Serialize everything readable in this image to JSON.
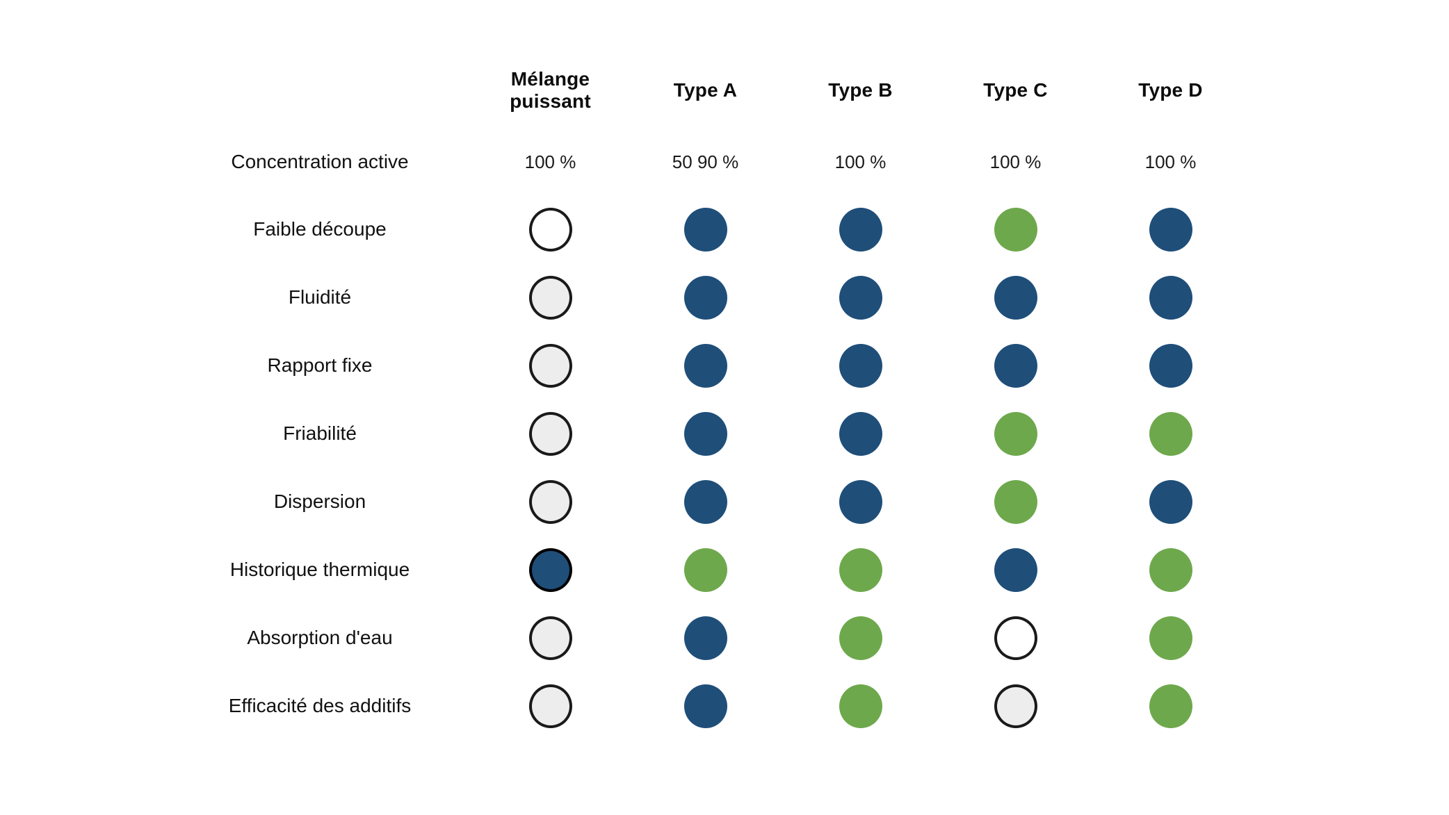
{
  "chart_data": {
    "type": "table",
    "description": "Comparison matrix of mixture types with colored rating dots",
    "columns": [
      "Mélange puissant",
      "Type A",
      "Type B",
      "Type C",
      "Type D"
    ],
    "concentration": {
      "label": "Concentration active",
      "values": [
        "100 %",
        "50 90 %",
        "100 %",
        "100 %",
        "100 %"
      ]
    },
    "rows": [
      {
        "label": "Faible découpe",
        "dots": [
          "white",
          "blue",
          "blue",
          "green",
          "blue"
        ]
      },
      {
        "label": "Fluidité",
        "dots": [
          "gray",
          "blue",
          "blue",
          "blue",
          "blue"
        ]
      },
      {
        "label": "Rapport fixe",
        "dots": [
          "gray",
          "blue",
          "blue",
          "blue",
          "blue"
        ]
      },
      {
        "label": "Friabilité",
        "dots": [
          "gray",
          "blue",
          "blue",
          "green",
          "green"
        ]
      },
      {
        "label": "Dispersion",
        "dots": [
          "gray",
          "blue",
          "blue",
          "green",
          "blue"
        ]
      },
      {
        "label": "Historique thermique",
        "dots": [
          "navy_outlined",
          "green",
          "green",
          "blue",
          "green"
        ]
      },
      {
        "label": "Absorption d'eau",
        "dots": [
          "gray",
          "blue",
          "green",
          "white",
          "green"
        ]
      },
      {
        "label": "Efficacité des additifs",
        "dots": [
          "gray",
          "blue",
          "green",
          "gray",
          "green"
        ]
      }
    ],
    "colors": {
      "blue": "#1F4E79",
      "green": "#6EA84C",
      "gray_fill": "#EDEDED",
      "white_fill": "#FFFFFF",
      "outline_dark": "#1A1A1A",
      "background": "#FFFFFF"
    }
  }
}
